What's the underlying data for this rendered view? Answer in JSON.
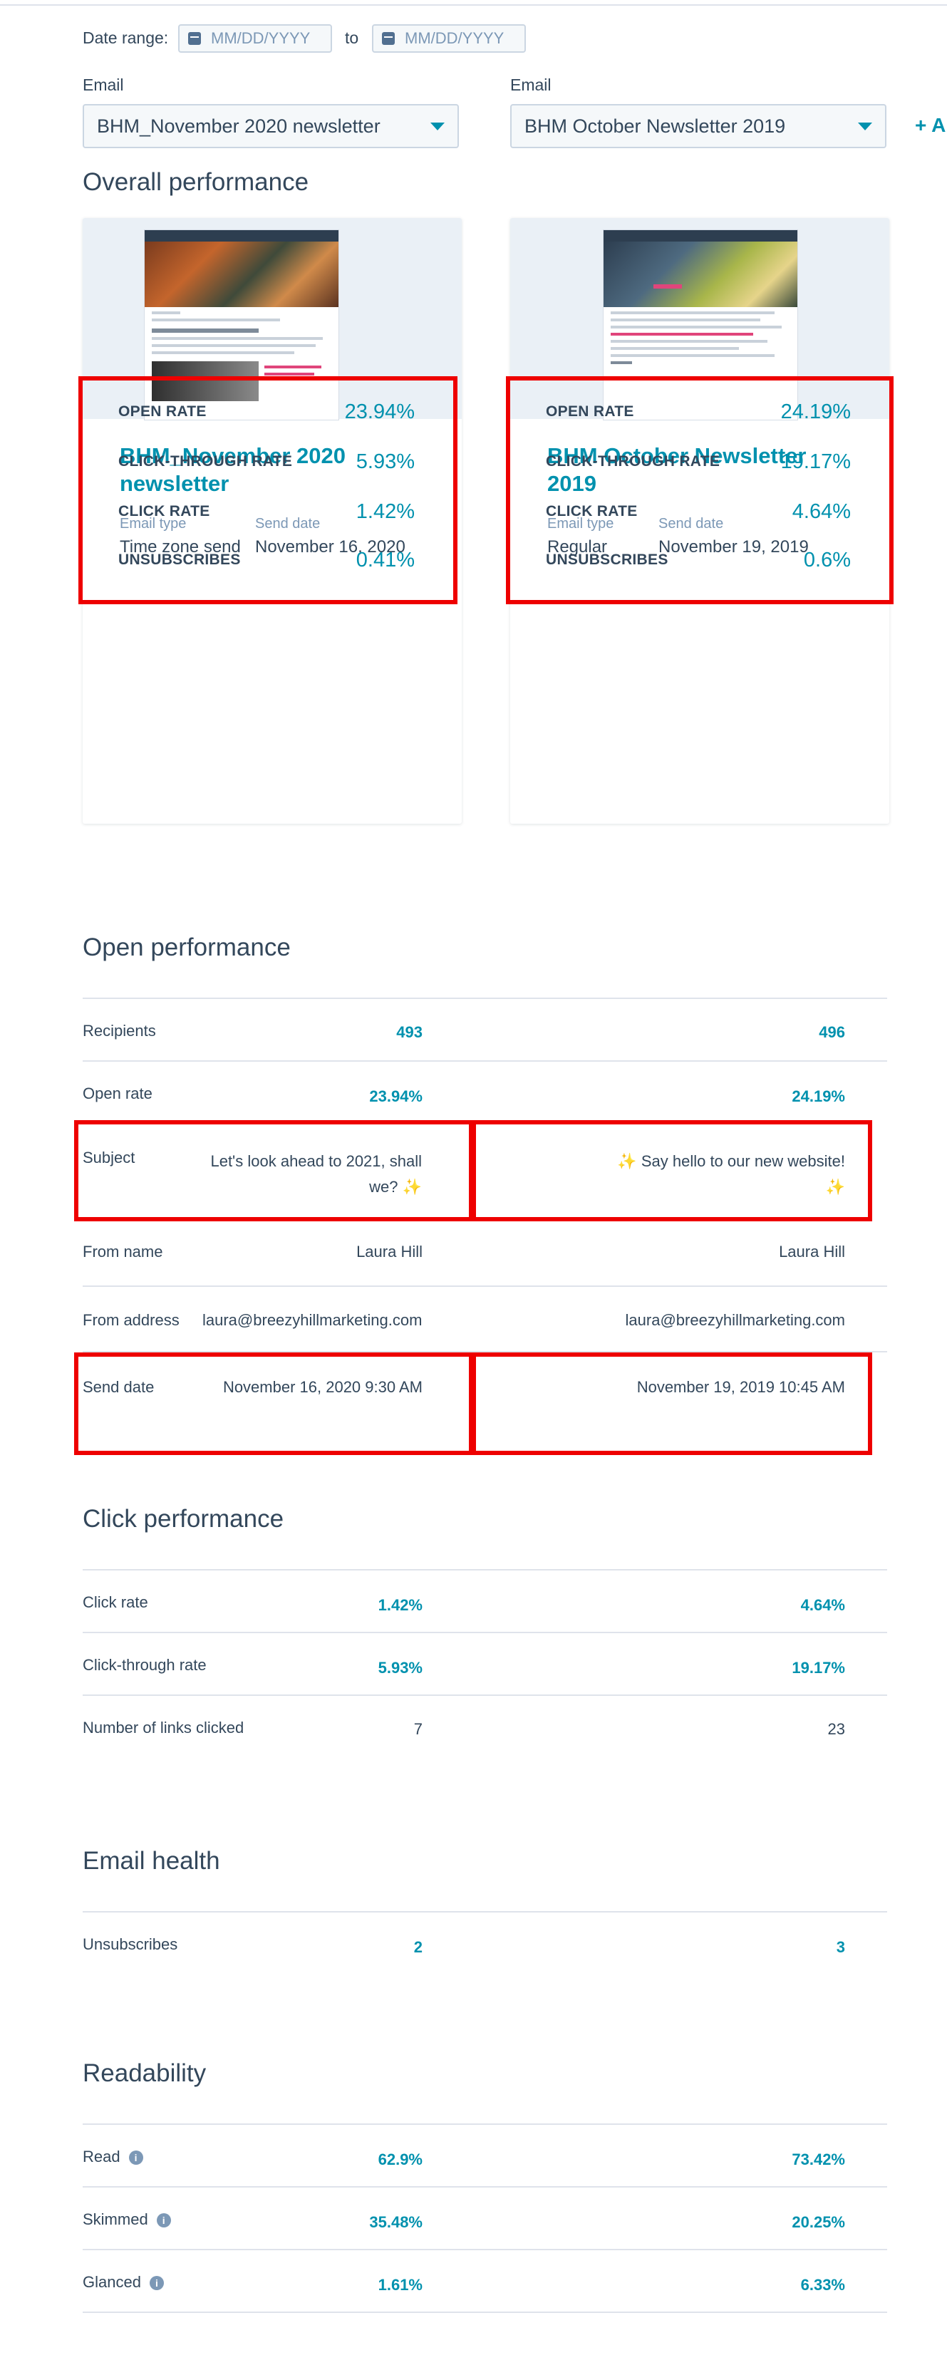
{
  "filters": {
    "date_range_label": "Date range:",
    "date_from_placeholder": "MM/DD/YYYY",
    "date_to_label": "to",
    "date_to_placeholder": "MM/DD/YYYY",
    "email_label_1": "Email",
    "email_label_2": "Email",
    "email_select_1": "BHM_November 2020 newsletter",
    "email_select_2": "BHM October Newsletter 2019",
    "add_label": "+ A"
  },
  "overall": {
    "title": "Overall performance",
    "cards": [
      {
        "title": "BHM_November 2020 newsletter",
        "email_type_label": "Email type",
        "email_type": "Time zone send",
        "send_date_label": "Send date",
        "send_date": "November 16, 2020",
        "stats": [
          {
            "label": "OPEN RATE",
            "value": "23.94%"
          },
          {
            "label": "CLICK-THROUGH RATE",
            "value": "5.93%"
          },
          {
            "label": "CLICK RATE",
            "value": "1.42%"
          },
          {
            "label": "UNSUBSCRIBES",
            "value": "0.41%"
          }
        ]
      },
      {
        "title": "BHM October Newsletter 2019",
        "email_type_label": "Email type",
        "email_type": "Regular",
        "send_date_label": "Send date",
        "send_date": "November 19, 2019",
        "stats": [
          {
            "label": "OPEN RATE",
            "value": "24.19%"
          },
          {
            "label": "CLICK-THROUGH RATE",
            "value": "19.17%"
          },
          {
            "label": "CLICK RATE",
            "value": "4.64%"
          },
          {
            "label": "UNSUBSCRIBES",
            "value": "0.6%"
          }
        ]
      }
    ]
  },
  "open_performance": {
    "title": "Open performance",
    "rows": [
      {
        "label": "Recipients",
        "v1": "493",
        "v2": "496"
      },
      {
        "label": "Open rate",
        "v1": "23.94%",
        "v2": "24.19%"
      },
      {
        "label": "Subject",
        "v1": "Let's look ahead to 2021, shall we?",
        "v2": "Say hello to our new website!"
      },
      {
        "label": "From name",
        "v1": "Laura Hill",
        "v2": "Laura Hill"
      },
      {
        "label": "From address",
        "v1": "laura@breezyhillmarketing.com",
        "v2": "laura@breezyhillmarketing.com"
      },
      {
        "label": "Send date",
        "v1": "November 16, 2020 9:30 AM",
        "v2": "November 19, 2019 10:45 AM"
      }
    ]
  },
  "click_performance": {
    "title": "Click performance",
    "rows": [
      {
        "label": "Click rate",
        "v1": "1.42%",
        "v2": "4.64%"
      },
      {
        "label": "Click-through rate",
        "v1": "5.93%",
        "v2": "19.17%"
      },
      {
        "label": "Number of links clicked",
        "v1": "7",
        "v2": "23"
      }
    ]
  },
  "email_health": {
    "title": "Email health",
    "rows": [
      {
        "label": "Unsubscribes",
        "v1": "2",
        "v2": "3"
      }
    ]
  },
  "readability": {
    "title": "Readability",
    "rows": [
      {
        "label": "Read",
        "v1": "62.9%",
        "v2": "73.42%"
      },
      {
        "label": "Skimmed",
        "v1": "35.48%",
        "v2": "20.25%"
      },
      {
        "label": "Glanced",
        "v1": "1.61%",
        "v2": "6.33%"
      }
    ]
  },
  "colors": {
    "accent": "#0091ae",
    "text": "#33475b",
    "highlight_box": "#ee0000"
  },
  "icons": {
    "calendar": "calendar-icon",
    "dropdown": "chevron-down-icon",
    "info": "info-icon",
    "sparkle": "sparkles-icon"
  }
}
